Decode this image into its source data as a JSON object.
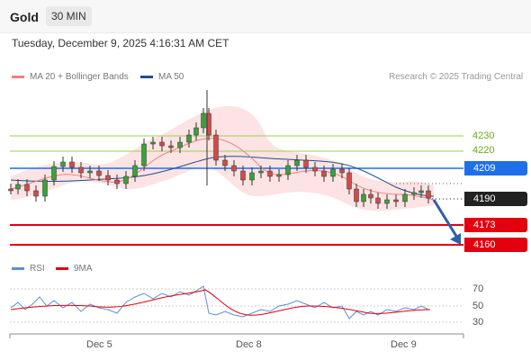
{
  "header": {
    "title": "Gold",
    "timeframe": "30 MIN"
  },
  "timestamp": "Tuesday, December 9, 2025 4:16:31 AM CET",
  "legend": {
    "ma20_label": "MA 20 + Bollinger Bands",
    "ma50_label": "MA 50",
    "credit": "Research © 2025 Trading Central",
    "ma20_color": "#f08080",
    "ma50_color": "#1f4e8f"
  },
  "levels": {
    "r2": "4230",
    "r1": "4220",
    "pivot": "4209",
    "last": "4190",
    "s1": "4173",
    "s2": "4160",
    "resistance_color": "#9bcf5a",
    "pivot_color": "#1e6fe8",
    "support_color": "#e3000f",
    "last_color": "#222222"
  },
  "rsi": {
    "rsi_label": "RSI",
    "ma_label": "9MA",
    "rsi_color": "#5b8fd8",
    "ma_color": "#e3000f",
    "ticks": [
      "70",
      "50",
      "30"
    ]
  },
  "xaxis": {
    "labels": [
      "Dec 5",
      "Dec 8",
      "Dec 9"
    ]
  }
}
